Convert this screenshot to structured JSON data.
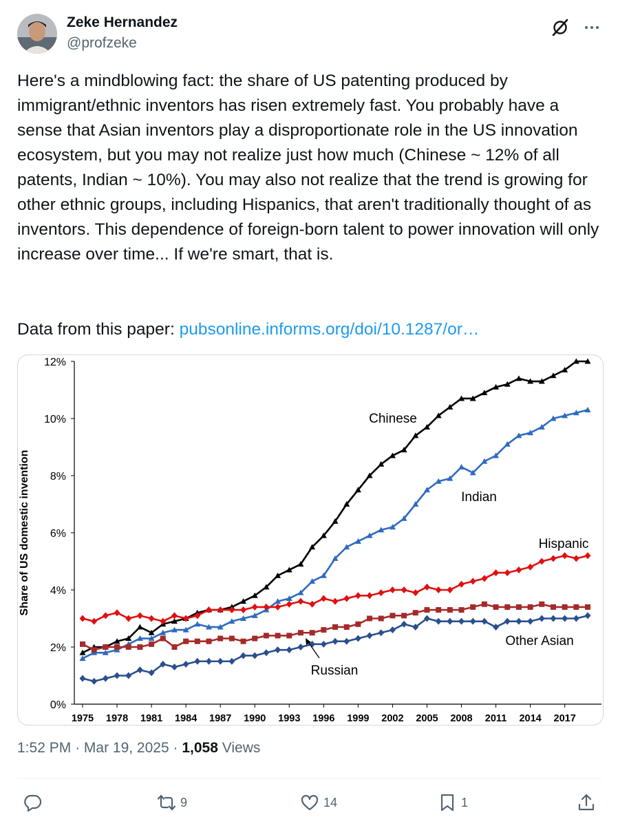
{
  "author": {
    "name": "Zeke Hernandez",
    "handle": "@profzeke"
  },
  "tweet": {
    "text": "Here's a mindblowing fact: the share of US patenting produced by immigrant/ethnic inventors has risen extremely fast. You probably have a sense that Asian inventors play a disproportionate role in the US innovation ecosystem, but you may not realize just how much (Chinese ~ 12% of all patents, Indian ~ 10%). You may also not realize that the trend is growing for other ethnic groups, including Hispanics, that aren't traditionally thought of as inventors. This dependence of foreign-born talent to power innovation will only increase over time... If we're smart, that is.",
    "data_prefix": "Data from this paper: ",
    "link_text": "pubsonline.informs.org/doi/10.1287/or…"
  },
  "meta": {
    "time": "1:52 PM",
    "date": "Mar 19, 2025",
    "views_count": "1,058",
    "views_label": "Views",
    "sep": "·"
  },
  "actions": {
    "replies": "",
    "reposts": "9",
    "likes": "14",
    "bookmarks": "1"
  },
  "colors": {
    "link": "#1d9bf0",
    "secondary_text": "#536471",
    "chinese": "#000000",
    "indian": "#2e6bbf",
    "hispanic": "#e01010",
    "other_asian": "#a52a2a",
    "russian": "#2a4f8f"
  },
  "icons": {
    "grok": "grok-icon",
    "more": "more-icon",
    "reply": "reply-icon",
    "repost": "repost-icon",
    "like": "heart-icon",
    "bookmark": "bookmark-icon",
    "share": "share-icon"
  },
  "chart_data": {
    "type": "line",
    "title": "",
    "xlabel": "",
    "ylabel": "Share of US domestic invention",
    "x": [
      1975,
      1976,
      1977,
      1978,
      1979,
      1980,
      1981,
      1982,
      1983,
      1984,
      1985,
      1986,
      1987,
      1988,
      1989,
      1990,
      1991,
      1992,
      1993,
      1994,
      1995,
      1996,
      1997,
      1998,
      1999,
      2000,
      2001,
      2002,
      2003,
      2004,
      2005,
      2006,
      2007,
      2008,
      2009,
      2010,
      2011,
      2012,
      2013,
      2014,
      2015,
      2016,
      2017,
      2018,
      2019
    ],
    "xticks": [
      "1975",
      "1978",
      "1981",
      "1984",
      "1987",
      "1990",
      "1993",
      "1996",
      "1999",
      "2002",
      "2005",
      "2008",
      "2011",
      "2014",
      "2017"
    ],
    "yticks": [
      "0%",
      "2%",
      "4%",
      "6%",
      "8%",
      "10%",
      "12%"
    ],
    "ylim": [
      0,
      12
    ],
    "xlim": [
      1975,
      2019
    ],
    "series": [
      {
        "name": "Chinese",
        "marker": "triangle",
        "values": [
          1.8,
          2.0,
          2.0,
          2.2,
          2.3,
          2.7,
          2.5,
          2.8,
          2.9,
          3.0,
          3.2,
          3.3,
          3.3,
          3.4,
          3.6,
          3.8,
          4.1,
          4.5,
          4.7,
          4.9,
          5.5,
          5.9,
          6.4,
          7.0,
          7.5,
          8.0,
          8.4,
          8.7,
          8.9,
          9.4,
          9.7,
          10.1,
          10.4,
          10.7,
          10.7,
          10.9,
          11.1,
          11.2,
          11.4,
          11.3,
          11.3,
          11.5,
          11.7,
          12.0,
          12.0
        ]
      },
      {
        "name": "Indian",
        "marker": "triangle",
        "values": [
          1.6,
          1.8,
          1.8,
          1.9,
          2.1,
          2.3,
          2.3,
          2.5,
          2.6,
          2.6,
          2.8,
          2.7,
          2.7,
          2.9,
          3.0,
          3.1,
          3.3,
          3.6,
          3.7,
          3.9,
          4.3,
          4.5,
          5.1,
          5.5,
          5.7,
          5.9,
          6.1,
          6.2,
          6.5,
          7.0,
          7.5,
          7.8,
          7.9,
          8.3,
          8.1,
          8.5,
          8.7,
          9.1,
          9.4,
          9.5,
          9.7,
          10.0,
          10.1,
          10.2,
          10.3
        ]
      },
      {
        "name": "Hispanic",
        "marker": "diamond",
        "values": [
          3.0,
          2.9,
          3.1,
          3.2,
          3.0,
          3.1,
          3.0,
          2.9,
          3.1,
          3.0,
          3.1,
          3.3,
          3.3,
          3.3,
          3.3,
          3.4,
          3.4,
          3.4,
          3.5,
          3.6,
          3.5,
          3.7,
          3.6,
          3.7,
          3.8,
          3.8,
          3.9,
          4.0,
          4.0,
          3.9,
          4.1,
          4.0,
          4.0,
          4.2,
          4.3,
          4.4,
          4.6,
          4.6,
          4.7,
          4.8,
          5.0,
          5.1,
          5.2,
          5.1,
          5.2
        ]
      },
      {
        "name": "Other Asian",
        "marker": "square",
        "values": [
          2.1,
          1.9,
          2.0,
          2.0,
          2.0,
          2.0,
          2.1,
          2.3,
          2.0,
          2.2,
          2.2,
          2.2,
          2.3,
          2.3,
          2.2,
          2.3,
          2.4,
          2.4,
          2.4,
          2.5,
          2.5,
          2.6,
          2.7,
          2.7,
          2.8,
          3.0,
          3.0,
          3.1,
          3.1,
          3.2,
          3.3,
          3.3,
          3.3,
          3.3,
          3.4,
          3.5,
          3.4,
          3.4,
          3.4,
          3.4,
          3.5,
          3.4,
          3.4,
          3.4,
          3.4
        ]
      },
      {
        "name": "Russian",
        "marker": "diamond",
        "values": [
          0.9,
          0.8,
          0.9,
          1.0,
          1.0,
          1.2,
          1.1,
          1.4,
          1.3,
          1.4,
          1.5,
          1.5,
          1.5,
          1.5,
          1.7,
          1.7,
          1.8,
          1.9,
          1.9,
          2.0,
          2.1,
          2.1,
          2.2,
          2.2,
          2.3,
          2.4,
          2.5,
          2.6,
          2.8,
          2.7,
          3.0,
          2.9,
          2.9,
          2.9,
          2.9,
          2.9,
          2.7,
          2.9,
          2.9,
          2.9,
          3.0,
          3.0,
          3.0,
          3.0,
          3.1
        ]
      }
    ],
    "legend": "inline-labels"
  }
}
